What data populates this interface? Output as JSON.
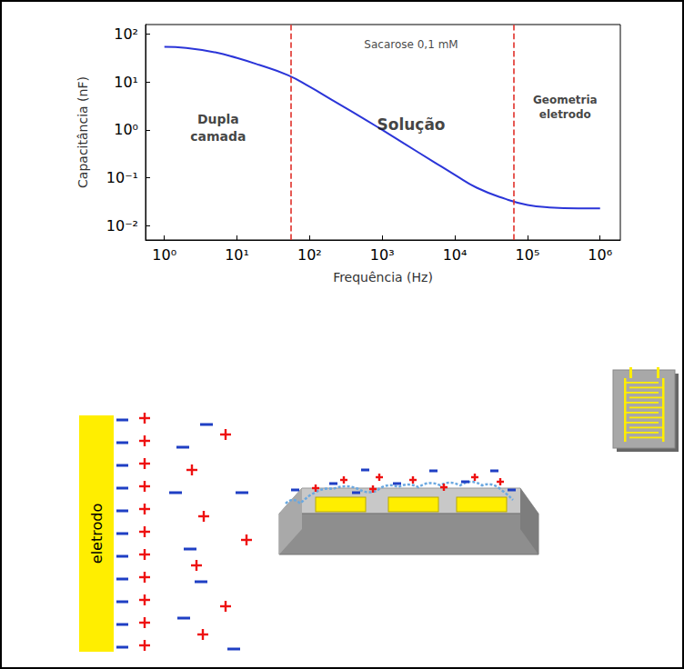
{
  "chart_data": {
    "type": "line",
    "x_label": "Frequência (Hz)",
    "y_label": "Capacitância (nF)",
    "log": true,
    "grid": false,
    "color": "#2b35d8",
    "x": [
      1,
      2,
      5,
      10,
      20,
      50,
      100,
      200,
      500,
      1000,
      2000,
      5000,
      10000,
      20000,
      50000,
      100000,
      200000,
      500000,
      1000000
    ],
    "values": [
      55,
      52,
      42,
      32,
      23,
      14,
      8,
      4.3,
      1.9,
      1.0,
      0.52,
      0.22,
      0.115,
      0.062,
      0.036,
      0.027,
      0.024,
      0.023,
      0.023
    ],
    "xlim": [
      0.55,
      1900000
    ],
    "ylim": [
      0.005,
      160
    ],
    "xticks": [
      {
        "value": 1,
        "label": "10⁰"
      },
      {
        "value": 10,
        "label": "10¹"
      },
      {
        "value": 100,
        "label": "10²"
      },
      {
        "value": 1000,
        "label": "10³"
      },
      {
        "value": 10000,
        "label": "10⁴"
      },
      {
        "value": 100000,
        "label": "10⁵"
      },
      {
        "value": 1000000,
        "label": "10⁶"
      }
    ],
    "yticks": [
      {
        "value": 0.01,
        "label": "10⁻²"
      },
      {
        "value": 0.1,
        "label": "10⁻¹"
      },
      {
        "value": 1,
        "label": "10⁰"
      },
      {
        "value": 10,
        "label": "10¹"
      },
      {
        "value": 100,
        "label": "10²"
      }
    ],
    "vlines": [
      {
        "x": 55,
        "color": "#e0302a",
        "line_style": "dashed"
      },
      {
        "x": 65000,
        "color": "#e0302a",
        "line_style": "dashed"
      }
    ],
    "annotations": [
      {
        "text": "Sacarose 0,1 mM",
        "x": 2500,
        "y": 60
      },
      {
        "text": "Dupla camada",
        "x": 5.5,
        "y": 1.1
      },
      {
        "text": "Solução",
        "x": 2500,
        "y": 1.3
      },
      {
        "text": "Geometria eletrodo",
        "x": 330000,
        "y": 3
      }
    ]
  },
  "diagram": {
    "electrode_label": "eletrodo"
  }
}
